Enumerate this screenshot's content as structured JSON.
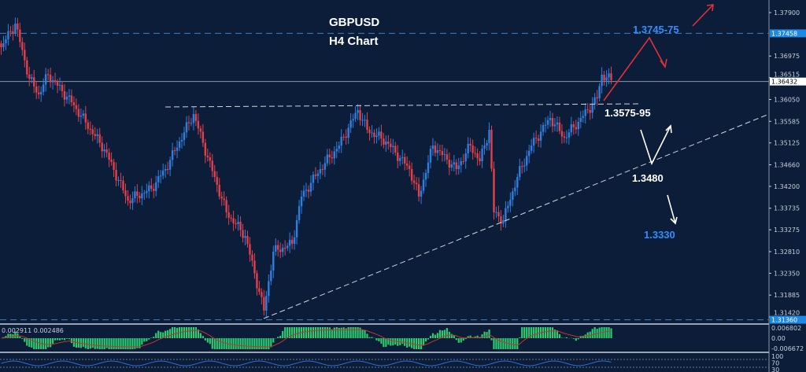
{
  "chart_data": {
    "type": "candlestick",
    "title": "GBPUSD",
    "subtitle": "H4 Chart",
    "symbol": "GBPUSD",
    "timeframe": "H4",
    "ylim": [
      1.3134,
      1.3818
    ],
    "y_ticks": [
      "1.37900",
      "1.36975",
      "1.36515",
      "1.36050",
      "1.35585",
      "1.35125",
      "1.34660",
      "1.34200",
      "1.33735",
      "1.33275",
      "1.32810",
      "1.32350",
      "1.31885",
      "1.31420"
    ],
    "current_price": "1.36432",
    "resistance_price_label": "1.37458",
    "support_price_label": "1.31360",
    "close_path": [
      [
        0,
        1.37163
      ],
      [
        3,
        1.37666
      ],
      [
        6,
        1.36493
      ],
      [
        8,
        1.36159
      ],
      [
        10,
        1.36577
      ],
      [
        15,
        1.35991
      ],
      [
        22,
        1.34986
      ],
      [
        27,
        1.33898
      ],
      [
        32,
        1.34149
      ],
      [
        35,
        1.34568
      ],
      [
        41,
        1.3574
      ],
      [
        44,
        1.34819
      ],
      [
        48,
        1.33647
      ],
      [
        52,
        1.33144
      ],
      [
        56,
        1.31554
      ],
      [
        58,
        1.3281
      ],
      [
        62,
        1.32978
      ],
      [
        64,
        1.33982
      ],
      [
        68,
        1.34568
      ],
      [
        72,
        1.3507
      ],
      [
        76,
        1.35824
      ],
      [
        78,
        1.35405
      ],
      [
        82,
        1.35154
      ],
      [
        87,
        1.34568
      ],
      [
        89,
        1.33982
      ],
      [
        92,
        1.3507
      ],
      [
        97,
        1.34568
      ],
      [
        100,
        1.3507
      ],
      [
        102,
        1.34735
      ],
      [
        104,
        1.35405
      ],
      [
        105,
        1.33647
      ],
      [
        107,
        1.33479
      ],
      [
        110,
        1.344
      ],
      [
        113,
        1.3507
      ],
      [
        117,
        1.35656
      ],
      [
        120,
        1.35238
      ],
      [
        123,
        1.35573
      ],
      [
        127,
        1.36075
      ],
      [
        128,
        1.36577
      ],
      [
        130,
        1.3646
      ]
    ],
    "annotations": {
      "target_high": "1.3745-75",
      "neckline": "1.3575-95",
      "trendline_support": "1.3480",
      "target_low": "1.3330"
    },
    "macd": {
      "values_label": "0.002911 0.002486",
      "y_ticks": [
        "0.006802",
        "0.00",
        "-0.006672"
      ]
    },
    "oscillator": {
      "y_ticks": [
        "100",
        "70",
        "30"
      ]
    },
    "colors": {
      "background": "#0b1d38",
      "bull": "#2f7fe0",
      "bear": "#e0414b",
      "histogram": "#2ecc71",
      "signal": "#c0392b",
      "highlight_label": "#1e88e5"
    }
  }
}
